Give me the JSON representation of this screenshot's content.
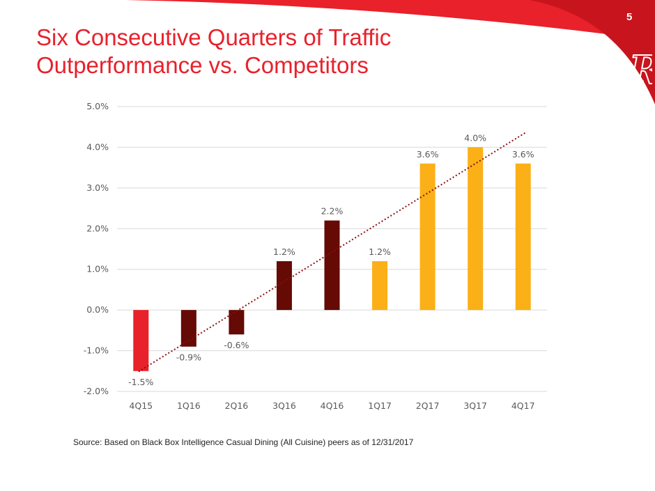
{
  "page": {
    "number": "5"
  },
  "title": {
    "line1": "Six Consecutive Quarters of Traffic",
    "line2": "Outperformance vs. Competitors"
  },
  "logo": {
    "icon": "rr-logo-icon",
    "text": "RR"
  },
  "source_note": "Source: Based on Black Box Intelligence Casual Dining (All Cuisine) peers as of 12/31/2017",
  "colors": {
    "title": "#e8212b",
    "swoosh": "#e8212b",
    "bar_red": "#e8212b",
    "bar_dark": "#650a05",
    "bar_gold": "#fbb017",
    "trendline": "#8b0d0d",
    "grid": "#d9d9d9",
    "axis_text": "#595959"
  },
  "chart_data": {
    "type": "bar",
    "title": "",
    "xlabel": "",
    "ylabel": "",
    "categories": [
      "4Q15",
      "1Q16",
      "2Q16",
      "3Q16",
      "4Q16",
      "1Q17",
      "2Q17",
      "3Q17",
      "4Q17"
    ],
    "values": [
      -1.5,
      -0.9,
      -0.6,
      1.2,
      2.2,
      1.2,
      3.6,
      4.0,
      3.6
    ],
    "data_labels": [
      "-1.5%",
      "-0.9%",
      "-0.6%",
      "1.2%",
      "2.2%",
      "1.2%",
      "3.6%",
      "4.0%",
      "3.6%"
    ],
    "bar_colors": [
      "#e8212b",
      "#650a05",
      "#650a05",
      "#650a05",
      "#650a05",
      "#fbb017",
      "#fbb017",
      "#fbb017",
      "#fbb017"
    ],
    "ylim": [
      -2.0,
      5.0
    ],
    "yticks": [
      -2.0,
      -1.0,
      0.0,
      1.0,
      2.0,
      3.0,
      4.0,
      5.0
    ],
    "ytick_labels": [
      "-2.0%",
      "-1.0%",
      "0.0%",
      "1.0%",
      "2.0%",
      "3.0%",
      "4.0%",
      "5.0%"
    ],
    "grid": true,
    "legend": "none",
    "trendline": {
      "type": "linear",
      "style": "dotted"
    }
  }
}
